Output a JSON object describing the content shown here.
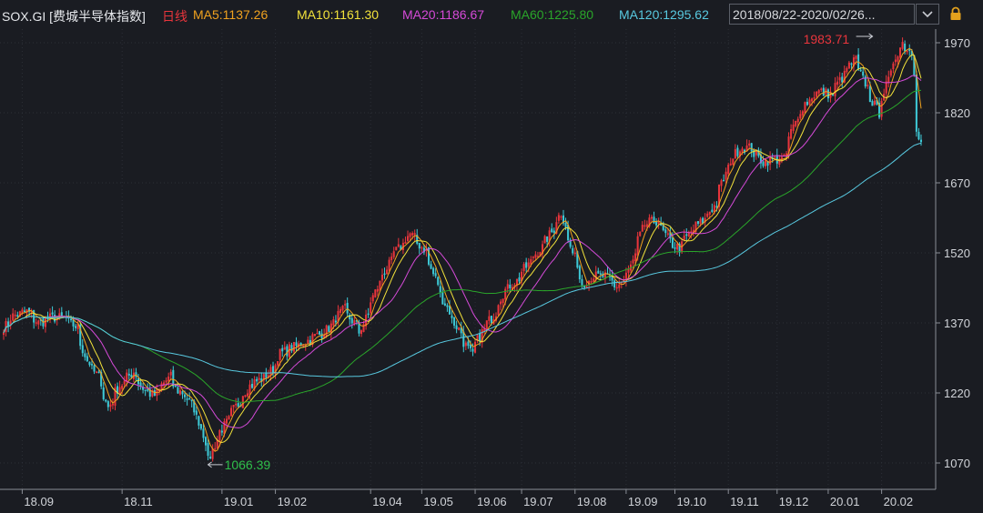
{
  "header": {
    "symbol": "SOX.GI [费城半导体指数]",
    "period": "日线",
    "ma5": "MA5:1137.26",
    "ma10": "MA10:1161.30",
    "ma20": "MA20:1186.67",
    "ma60": "MA60:1225.80",
    "ma120": "MA120:1295.62",
    "range": "2018/08/22-2020/02/26..."
  },
  "colors": {
    "background": "#1a1c22",
    "up": "#e8353c",
    "down": "#3ec9d6",
    "ma5": "#f0a21f",
    "ma10": "#f2e23b",
    "ma20": "#d54ad8",
    "ma60": "#2aa52a",
    "ma120": "#58c9e0"
  },
  "chart_data": {
    "type": "candlestick",
    "y_ticks": [
      1970,
      1820,
      1670,
      1520,
      1370,
      1220,
      1070
    ],
    "x_ticks": [
      "18.09",
      "18.11",
      "19.01",
      "19.02",
      "19.04",
      "19.05",
      "19.06",
      "19.07",
      "19.08",
      "19.09",
      "19.10",
      "19.11",
      "19.12",
      "20.01",
      "20.02"
    ],
    "max_label": "1983.71",
    "min_label": "1066.39",
    "close_anchors": [
      [
        "2018-08-22",
        1360
      ],
      [
        "2018-08-28",
        1385
      ],
      [
        "2018-09-05",
        1395
      ],
      [
        "2018-09-12",
        1370
      ],
      [
        "2018-09-20",
        1382
      ],
      [
        "2018-09-28",
        1380
      ],
      [
        "2018-10-05",
        1360
      ],
      [
        "2018-10-11",
        1290
      ],
      [
        "2018-10-18",
        1255
      ],
      [
        "2018-10-24",
        1190
      ],
      [
        "2018-10-31",
        1235
      ],
      [
        "2018-11-08",
        1265
      ],
      [
        "2018-11-15",
        1225
      ],
      [
        "2018-11-21",
        1215
      ],
      [
        "2018-11-30",
        1255
      ],
      [
        "2018-12-05",
        1225
      ],
      [
        "2018-12-10",
        1215
      ],
      [
        "2018-12-18",
        1160
      ],
      [
        "2018-12-24",
        1075
      ],
      [
        "2018-12-28",
        1120
      ],
      [
        "2019-01-08",
        1185
      ],
      [
        "2019-01-17",
        1235
      ],
      [
        "2019-01-29",
        1260
      ],
      [
        "2019-02-05",
        1305
      ],
      [
        "2019-02-20",
        1330
      ],
      [
        "2019-03-05",
        1355
      ],
      [
        "2019-03-15",
        1400
      ],
      [
        "2019-03-25",
        1350
      ],
      [
        "2019-04-05",
        1455
      ],
      [
        "2019-04-15",
        1520
      ],
      [
        "2019-04-24",
        1560
      ],
      [
        "2019-05-03",
        1525
      ],
      [
        "2019-05-10",
        1455
      ],
      [
        "2019-05-17",
        1395
      ],
      [
        "2019-05-24",
        1350
      ],
      [
        "2019-05-31",
        1300
      ],
      [
        "2019-06-06",
        1350
      ],
      [
        "2019-06-13",
        1385
      ],
      [
        "2019-06-20",
        1440
      ],
      [
        "2019-06-27",
        1460
      ],
      [
        "2019-07-05",
        1500
      ],
      [
        "2019-07-15",
        1545
      ],
      [
        "2019-07-24",
        1605
      ],
      [
        "2019-07-31",
        1520
      ],
      [
        "2019-08-06",
        1455
      ],
      [
        "2019-08-13",
        1470
      ],
      [
        "2019-08-20",
        1470
      ],
      [
        "2019-08-26",
        1445
      ],
      [
        "2019-09-03",
        1480
      ],
      [
        "2019-09-12",
        1580
      ],
      [
        "2019-09-20",
        1590
      ],
      [
        "2019-09-27",
        1545
      ],
      [
        "2019-10-03",
        1530
      ],
      [
        "2019-10-11",
        1570
      ],
      [
        "2019-10-18",
        1590
      ],
      [
        "2019-10-25",
        1625
      ],
      [
        "2019-11-01",
        1700
      ],
      [
        "2019-11-08",
        1745
      ],
      [
        "2019-11-15",
        1745
      ],
      [
        "2019-11-22",
        1715
      ],
      [
        "2019-11-29",
        1720
      ],
      [
        "2019-12-05",
        1720
      ],
      [
        "2019-12-11",
        1790
      ],
      [
        "2019-12-18",
        1840
      ],
      [
        "2019-12-26",
        1865
      ],
      [
        "2020-01-03",
        1860
      ],
      [
        "2020-01-10",
        1900
      ],
      [
        "2020-01-17",
        1935
      ],
      [
        "2020-01-24",
        1875
      ],
      [
        "2020-01-31",
        1820
      ],
      [
        "2020-02-07",
        1900
      ],
      [
        "2020-02-14",
        1970
      ],
      [
        "2020-02-20",
        1950
      ],
      [
        "2020-02-24",
        1790
      ],
      [
        "2020-02-26",
        1755
      ]
    ]
  }
}
